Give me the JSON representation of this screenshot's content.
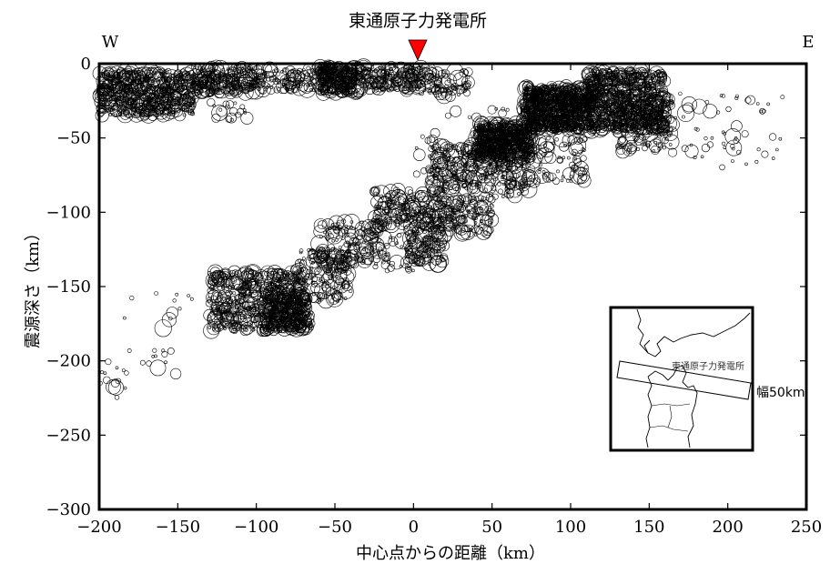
{
  "chart_data": {
    "type": "scatter",
    "title": "東通原子力発電所",
    "xlabel": "中心点からの距離（km）",
    "ylabel": "震源深さ（km）",
    "xlim": [
      -200,
      250
    ],
    "ylim": [
      -300,
      0
    ],
    "x_ticks": [
      -200,
      -150,
      -100,
      -50,
      0,
      50,
      100,
      150,
      200,
      250
    ],
    "y_ticks": [
      0,
      -50,
      -100,
      -150,
      -200,
      -250,
      -300
    ],
    "x_tick_labels": [
      "−200",
      "−150",
      "−100",
      "−50",
      "0",
      "50",
      "100",
      "150",
      "200",
      "250"
    ],
    "y_tick_labels": [
      "0",
      "−50",
      "−100",
      "−150",
      "−200",
      "−250",
      "−300"
    ],
    "direction_labels": {
      "west": "W",
      "east": "E"
    },
    "site_marker": {
      "x": 0,
      "y": 0,
      "color": "#ff0000"
    },
    "grid": false,
    "marker": {
      "shape": "open-circle",
      "color": "#000000"
    },
    "inset": {
      "site_label": "東通原子力発電所",
      "width_label": "幅50km"
    },
    "point_clusters": [
      {
        "x": [
          -200,
          -140
        ],
        "y": [
          -35,
          -5
        ],
        "count": 700
      },
      {
        "x": [
          -140,
          -100
        ],
        "y": [
          -20,
          -2
        ],
        "count": 260
      },
      {
        "x": [
          -100,
          -55
        ],
        "y": [
          -18,
          -3
        ],
        "count": 140
      },
      {
        "x": [
          -60,
          -35
        ],
        "y": [
          -20,
          -2
        ],
        "count": 320
      },
      {
        "x": [
          -35,
          5
        ],
        "y": [
          -18,
          -2
        ],
        "count": 220
      },
      {
        "x": [
          5,
          35
        ],
        "y": [
          -22,
          -5
        ],
        "count": 90
      },
      {
        "x": [
          -130,
          -105
        ],
        "y": [
          -38,
          -25
        ],
        "count": 20
      },
      {
        "x": [
          -200,
          -180
        ],
        "y": [
          -225,
          -195
        ],
        "count": 14
      },
      {
        "x": [
          -185,
          -150
        ],
        "y": [
          -210,
          -170
        ],
        "count": 16
      },
      {
        "x": [
          -130,
          -70
        ],
        "y": [
          -180,
          -140
        ],
        "count": 650
      },
      {
        "x": [
          -95,
          -65
        ],
        "y": [
          -180,
          -155
        ],
        "count": 260
      },
      {
        "x": [
          -75,
          -40
        ],
        "y": [
          -160,
          -125
        ],
        "count": 180
      },
      {
        "x": [
          -60,
          -20
        ],
        "y": [
          -135,
          -105
        ],
        "count": 160
      },
      {
        "x": [
          -25,
          20
        ],
        "y": [
          -110,
          -85
        ],
        "count": 220
      },
      {
        "x": [
          10,
          45
        ],
        "y": [
          -85,
          -55
        ],
        "count": 200
      },
      {
        "x": [
          40,
          75
        ],
        "y": [
          -65,
          -40
        ],
        "count": 650
      },
      {
        "x": [
          70,
          115
        ],
        "y": [
          -45,
          -15
        ],
        "count": 1000
      },
      {
        "x": [
          110,
          160
        ],
        "y": [
          -45,
          -5
        ],
        "count": 800
      },
      {
        "x": [
          130,
          165
        ],
        "y": [
          -60,
          -20
        ],
        "count": 200
      },
      {
        "x": [
          160,
          235
        ],
        "y": [
          -70,
          -20
        ],
        "count": 60
      },
      {
        "x": [
          -5,
          20
        ],
        "y": [
          -135,
          -110
        ],
        "count": 140
      },
      {
        "x": [
          15,
          50
        ],
        "y": [
          -115,
          -90
        ],
        "count": 160
      },
      {
        "x": [
          45,
          75
        ],
        "y": [
          -90,
          -65
        ],
        "count": 110
      },
      {
        "x": [
          70,
          110
        ],
        "y": [
          -80,
          -50
        ],
        "count": 90
      },
      {
        "x": [
          -30,
          0
        ],
        "y": [
          -140,
          -115
        ],
        "count": 40
      },
      {
        "x": [
          0,
          60
        ],
        "y": [
          -80,
          -30
        ],
        "count": 40
      },
      {
        "x": [
          -180,
          -140
        ],
        "y": [
          -170,
          -150
        ],
        "count": 8
      }
    ]
  }
}
